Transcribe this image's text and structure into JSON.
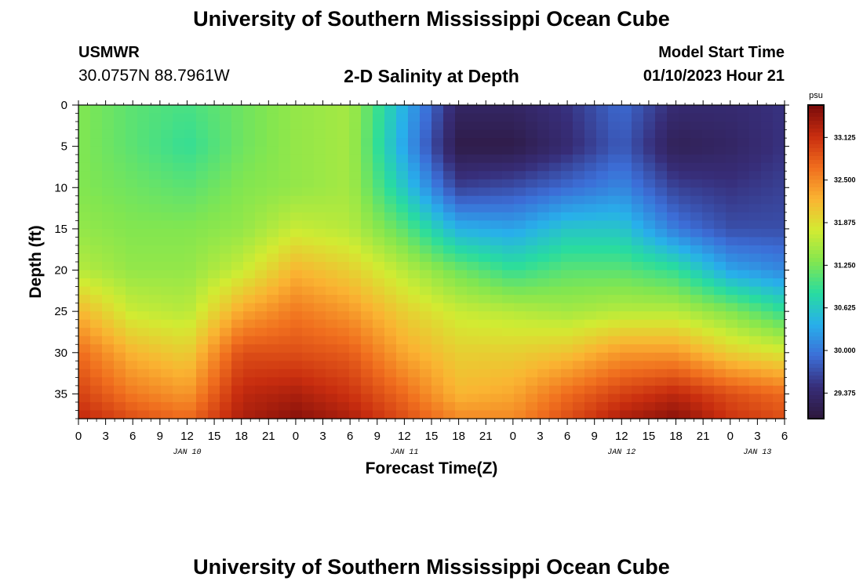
{
  "header": {
    "title": "University of Southern Mississippi Ocean Cube",
    "station": "USMWR",
    "coordinates": "30.0757N  88.7961W",
    "subtitle": "2-D Salinity at Depth",
    "model_start_label": "Model Start Time",
    "model_start_value": "01/10/2023 Hour 21"
  },
  "footer": {
    "title": "University of Southern Mississippi Ocean Cube"
  },
  "chart_data": {
    "type": "heatmap",
    "title": "2-D Salinity at Depth",
    "xlabel": "Forecast Time(Z)",
    "ylabel": "Depth (ft)",
    "x_start_hour": 0,
    "x_end_hour": 78,
    "x_tick_step_hours": 3,
    "x_tick_labels": [
      "0",
      "3",
      "6",
      "9",
      "12",
      "15",
      "18",
      "21",
      "0",
      "3",
      "6",
      "9",
      "12",
      "15",
      "18",
      "21",
      "0",
      "3",
      "6",
      "9",
      "12",
      "15",
      "18",
      "21",
      "0",
      "3",
      "6"
    ],
    "day_labels": [
      {
        "label": "JAN 10",
        "hour": 12
      },
      {
        "label": "JAN 11",
        "hour": 36
      },
      {
        "label": "JAN 12",
        "hour": 60
      },
      {
        "label": "JAN 13",
        "hour": 75
      }
    ],
    "y_ticks": [
      0,
      5,
      10,
      15,
      20,
      25,
      30,
      35
    ],
    "ylim": [
      0,
      38
    ],
    "colorbar": {
      "unit": "psu",
      "min": 29.0,
      "max": 33.6,
      "ticks": [
        "33.125",
        "32.500",
        "31.875",
        "31.250",
        "30.625",
        "30.000",
        "29.375"
      ]
    },
    "depth_levels_ft": [
      0,
      5,
      10,
      15,
      20,
      25,
      30,
      35,
      38
    ],
    "time_hours": [
      0,
      6,
      12,
      18,
      24,
      30,
      36,
      42,
      48,
      54,
      60,
      66,
      72,
      78
    ],
    "salinity_psu": [
      [
        31.3,
        31.1,
        31.0,
        31.2,
        31.4,
        31.5,
        30.4,
        29.3,
        29.3,
        29.5,
        29.9,
        29.4,
        29.4,
        29.5
      ],
      [
        31.3,
        31.1,
        30.9,
        31.2,
        31.4,
        31.5,
        30.3,
        29.1,
        29.1,
        29.4,
        29.8,
        29.2,
        29.3,
        29.5
      ],
      [
        31.3,
        31.2,
        31.1,
        31.3,
        31.4,
        31.5,
        30.6,
        29.6,
        29.7,
        29.9,
        30.1,
        29.6,
        29.5,
        29.6
      ],
      [
        31.4,
        31.3,
        31.3,
        31.4,
        31.7,
        31.6,
        31.1,
        30.4,
        30.3,
        30.6,
        30.6,
        30.0,
        29.7,
        29.7
      ],
      [
        31.6,
        31.4,
        31.4,
        31.7,
        32.2,
        32.0,
        31.6,
        31.2,
        30.9,
        31.1,
        31.1,
        30.9,
        30.3,
        30.1
      ],
      [
        32.2,
        31.7,
        31.6,
        32.3,
        32.6,
        32.4,
        32.0,
        31.7,
        31.6,
        31.5,
        31.6,
        31.6,
        31.3,
        30.9
      ],
      [
        32.7,
        32.2,
        32.0,
        32.9,
        32.9,
        32.8,
        32.3,
        32.0,
        32.0,
        32.1,
        32.4,
        32.4,
        32.0,
        31.8
      ],
      [
        33.0,
        32.6,
        32.4,
        33.2,
        33.3,
        33.1,
        32.7,
        32.2,
        32.3,
        32.7,
        33.0,
        33.2,
        32.9,
        32.7
      ],
      [
        33.2,
        32.9,
        32.7,
        33.3,
        33.5,
        33.3,
        32.9,
        32.5,
        32.5,
        32.9,
        33.3,
        33.5,
        33.1,
        32.9
      ]
    ]
  }
}
